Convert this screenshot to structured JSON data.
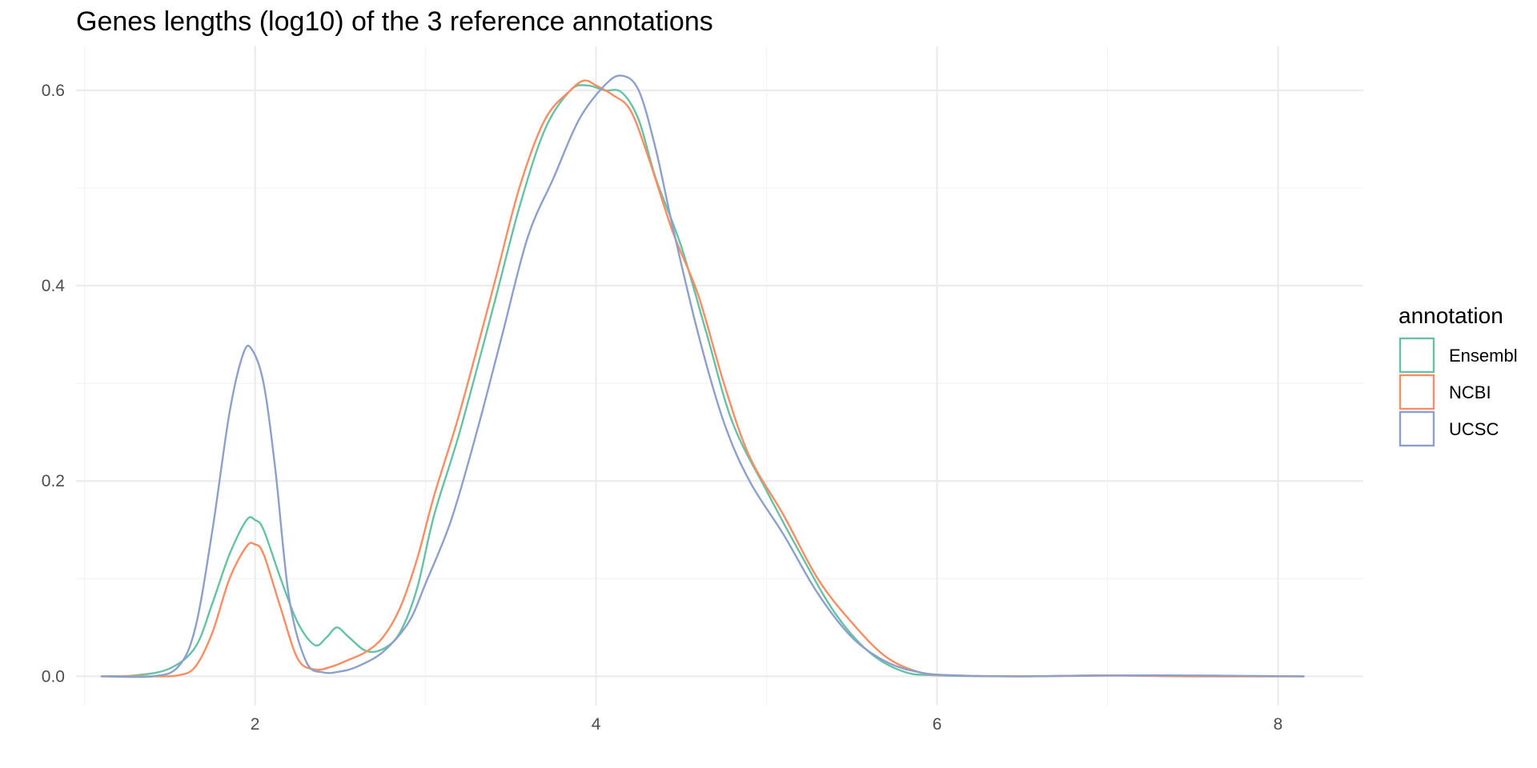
{
  "chart_data": {
    "type": "line",
    "title": "Genes lengths (log10) of the 3 reference annotations",
    "xlabel": "",
    "ylabel": "",
    "xlim": [
      0.95,
      8.5
    ],
    "ylim": [
      -0.03,
      0.645
    ],
    "x_ticks": [
      2,
      4,
      6,
      8
    ],
    "x_tick_labels": [
      "2",
      "4",
      "6",
      "8"
    ],
    "y_ticks": [
      0.0,
      0.2,
      0.4,
      0.6
    ],
    "y_tick_labels": [
      "0.0",
      "0.2",
      "0.4",
      "0.6"
    ],
    "grid": true,
    "legend": {
      "title": "annotation",
      "position": "right"
    },
    "series": [
      {
        "name": "Ensembl",
        "color": "#66c2a5",
        "points": [
          [
            1.1,
            0
          ],
          [
            1.3,
            0.001
          ],
          [
            1.5,
            0.008
          ],
          [
            1.65,
            0.03
          ],
          [
            1.75,
            0.075
          ],
          [
            1.85,
            0.125
          ],
          [
            1.95,
            0.16
          ],
          [
            2.0,
            0.16
          ],
          [
            2.05,
            0.15
          ],
          [
            2.15,
            0.1
          ],
          [
            2.25,
            0.055
          ],
          [
            2.35,
            0.032
          ],
          [
            2.42,
            0.04
          ],
          [
            2.48,
            0.05
          ],
          [
            2.55,
            0.04
          ],
          [
            2.65,
            0.026
          ],
          [
            2.75,
            0.028
          ],
          [
            2.85,
            0.045
          ],
          [
            2.95,
            0.09
          ],
          [
            3.05,
            0.165
          ],
          [
            3.2,
            0.25
          ],
          [
            3.4,
            0.38
          ],
          [
            3.55,
            0.48
          ],
          [
            3.7,
            0.56
          ],
          [
            3.85,
            0.6
          ],
          [
            3.95,
            0.605
          ],
          [
            4.05,
            0.6
          ],
          [
            4.15,
            0.598
          ],
          [
            4.25,
            0.57
          ],
          [
            4.35,
            0.51
          ],
          [
            4.5,
            0.44
          ],
          [
            4.65,
            0.35
          ],
          [
            4.8,
            0.26
          ],
          [
            5.0,
            0.19
          ],
          [
            5.2,
            0.125
          ],
          [
            5.4,
            0.065
          ],
          [
            5.6,
            0.025
          ],
          [
            5.8,
            0.005
          ],
          [
            6.0,
            0.001
          ],
          [
            6.5,
            0.0
          ],
          [
            7.0,
            0.001
          ],
          [
            7.5,
            0.0
          ],
          [
            8.15,
            0
          ]
        ]
      },
      {
        "name": "NCBI",
        "color": "#fc8d62",
        "points": [
          [
            1.1,
            0
          ],
          [
            1.4,
            0.0
          ],
          [
            1.55,
            0.001
          ],
          [
            1.65,
            0.01
          ],
          [
            1.75,
            0.045
          ],
          [
            1.85,
            0.1
          ],
          [
            1.95,
            0.133
          ],
          [
            2.0,
            0.135
          ],
          [
            2.05,
            0.125
          ],
          [
            2.15,
            0.07
          ],
          [
            2.25,
            0.018
          ],
          [
            2.35,
            0.007
          ],
          [
            2.45,
            0.01
          ],
          [
            2.55,
            0.017
          ],
          [
            2.65,
            0.025
          ],
          [
            2.75,
            0.04
          ],
          [
            2.85,
            0.07
          ],
          [
            2.95,
            0.12
          ],
          [
            3.05,
            0.185
          ],
          [
            3.2,
            0.27
          ],
          [
            3.4,
            0.4
          ],
          [
            3.55,
            0.5
          ],
          [
            3.7,
            0.57
          ],
          [
            3.85,
            0.6
          ],
          [
            3.93,
            0.61
          ],
          [
            4.0,
            0.605
          ],
          [
            4.1,
            0.595
          ],
          [
            4.2,
            0.58
          ],
          [
            4.3,
            0.535
          ],
          [
            4.45,
            0.455
          ],
          [
            4.6,
            0.39
          ],
          [
            4.75,
            0.3
          ],
          [
            4.9,
            0.225
          ],
          [
            5.1,
            0.165
          ],
          [
            5.3,
            0.1
          ],
          [
            5.5,
            0.055
          ],
          [
            5.7,
            0.02
          ],
          [
            5.9,
            0.004
          ],
          [
            6.1,
            0.001
          ],
          [
            6.5,
            0.0
          ],
          [
            7.0,
            0.001
          ],
          [
            7.5,
            0.0
          ],
          [
            8.15,
            0
          ]
        ]
      },
      {
        "name": "UCSC",
        "color": "#8da0cb",
        "points": [
          [
            1.1,
            0
          ],
          [
            1.4,
            0.0
          ],
          [
            1.55,
            0.01
          ],
          [
            1.65,
            0.05
          ],
          [
            1.75,
            0.15
          ],
          [
            1.85,
            0.27
          ],
          [
            1.93,
            0.33
          ],
          [
            1.98,
            0.335
          ],
          [
            2.05,
            0.3
          ],
          [
            2.12,
            0.21
          ],
          [
            2.2,
            0.08
          ],
          [
            2.3,
            0.015
          ],
          [
            2.4,
            0.004
          ],
          [
            2.5,
            0.005
          ],
          [
            2.6,
            0.01
          ],
          [
            2.75,
            0.025
          ],
          [
            2.9,
            0.055
          ],
          [
            3.0,
            0.095
          ],
          [
            3.15,
            0.16
          ],
          [
            3.3,
            0.25
          ],
          [
            3.45,
            0.35
          ],
          [
            3.6,
            0.45
          ],
          [
            3.75,
            0.51
          ],
          [
            3.9,
            0.57
          ],
          [
            4.05,
            0.605
          ],
          [
            4.15,
            0.615
          ],
          [
            4.25,
            0.6
          ],
          [
            4.35,
            0.54
          ],
          [
            4.45,
            0.46
          ],
          [
            4.6,
            0.35
          ],
          [
            4.75,
            0.26
          ],
          [
            4.9,
            0.2
          ],
          [
            5.1,
            0.145
          ],
          [
            5.3,
            0.085
          ],
          [
            5.5,
            0.04
          ],
          [
            5.7,
            0.015
          ],
          [
            5.9,
            0.004
          ],
          [
            6.1,
            0.001
          ],
          [
            6.5,
            0.0
          ],
          [
            7.3,
            0.001
          ],
          [
            8.15,
            0
          ]
        ]
      }
    ]
  }
}
